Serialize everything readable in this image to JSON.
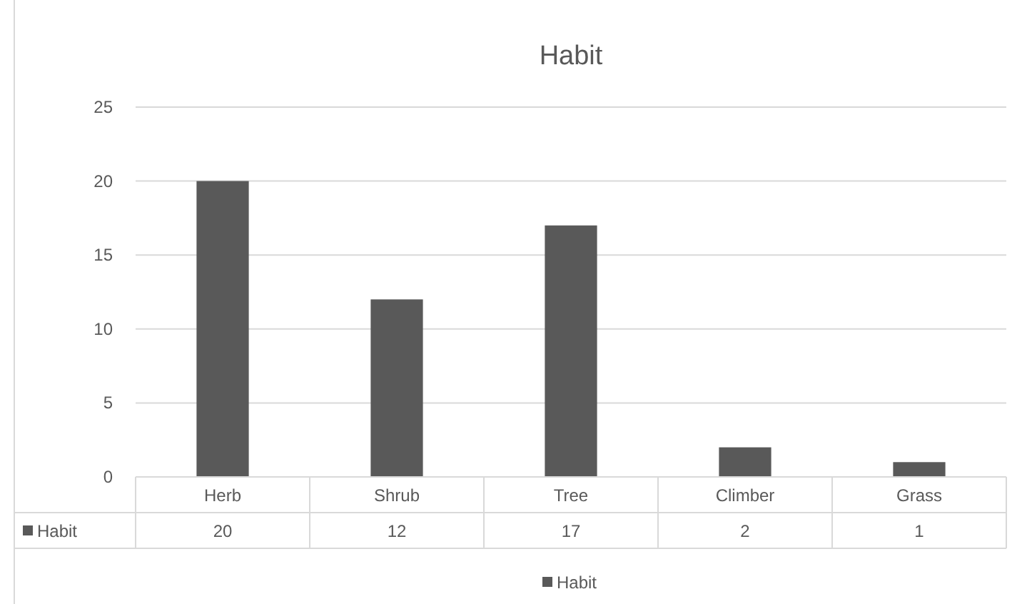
{
  "chart_data": {
    "type": "bar",
    "title": "Habit",
    "categories": [
      "Herb",
      "Shrub",
      "Tree",
      "Climber",
      "Grass"
    ],
    "series": [
      {
        "name": "Habit",
        "color": "#595959",
        "values": [
          20,
          12,
          17,
          2,
          1
        ]
      }
    ],
    "ylim": [
      0,
      25
    ],
    "yticks": [
      0,
      5,
      10,
      15,
      20,
      25
    ],
    "grid": "y",
    "legend": "bottom",
    "data_labels": true
  }
}
